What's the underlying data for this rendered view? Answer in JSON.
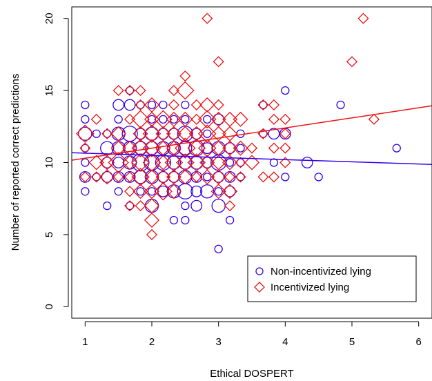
{
  "chart_data": {
    "type": "scatter",
    "title": "",
    "xlabel": "Ethical DOSPERT",
    "ylabel": "Number of reported correct predictions",
    "xlim": [
      0.8,
      6.2
    ],
    "ylim": [
      -0.8,
      20.8
    ],
    "xticks": [
      "1",
      "2",
      "3",
      "4",
      "5",
      "6"
    ],
    "yticks": [
      "0",
      "5",
      "10",
      "15",
      "20"
    ],
    "grid": false,
    "legend_position": "bottom-right",
    "colors": {
      "non_incentivized": "#3300ee",
      "incentivized": "#ee1111"
    },
    "series": [
      {
        "name": "Non-incentivized lying",
        "marker": "circle",
        "color": "#3300ee",
        "points": [
          {
            "x": 1.0,
            "y": 14,
            "n": 1
          },
          {
            "x": 1.0,
            "y": 13,
            "n": 1
          },
          {
            "x": 1.0,
            "y": 12,
            "n": 3
          },
          {
            "x": 1.0,
            "y": 11,
            "n": 1
          },
          {
            "x": 1.0,
            "y": 10,
            "n": 1
          },
          {
            "x": 1.0,
            "y": 9,
            "n": 2
          },
          {
            "x": 1.0,
            "y": 8,
            "n": 1
          },
          {
            "x": 1.17,
            "y": 12,
            "n": 1
          },
          {
            "x": 1.17,
            "y": 9,
            "n": 1
          },
          {
            "x": 1.33,
            "y": 12,
            "n": 1
          },
          {
            "x": 1.33,
            "y": 11,
            "n": 3
          },
          {
            "x": 1.33,
            "y": 10,
            "n": 2
          },
          {
            "x": 1.33,
            "y": 9,
            "n": 2
          },
          {
            "x": 1.33,
            "y": 7,
            "n": 1
          },
          {
            "x": 1.5,
            "y": 14,
            "n": 2
          },
          {
            "x": 1.5,
            "y": 13,
            "n": 1
          },
          {
            "x": 1.5,
            "y": 12,
            "n": 3
          },
          {
            "x": 1.5,
            "y": 11,
            "n": 3
          },
          {
            "x": 1.5,
            "y": 10,
            "n": 2
          },
          {
            "x": 1.5,
            "y": 9,
            "n": 2
          },
          {
            "x": 1.5,
            "y": 8,
            "n": 1
          },
          {
            "x": 1.67,
            "y": 15,
            "n": 1
          },
          {
            "x": 1.67,
            "y": 14,
            "n": 2
          },
          {
            "x": 1.67,
            "y": 12,
            "n": 4
          },
          {
            "x": 1.67,
            "y": 11,
            "n": 3
          },
          {
            "x": 1.67,
            "y": 10,
            "n": 3
          },
          {
            "x": 1.67,
            "y": 9,
            "n": 2
          },
          {
            "x": 1.67,
            "y": 7,
            "n": 1
          },
          {
            "x": 1.83,
            "y": 14,
            "n": 1
          },
          {
            "x": 1.83,
            "y": 12,
            "n": 2
          },
          {
            "x": 1.83,
            "y": 11,
            "n": 3
          },
          {
            "x": 1.83,
            "y": 10,
            "n": 5
          },
          {
            "x": 1.83,
            "y": 9,
            "n": 3
          },
          {
            "x": 1.83,
            "y": 8,
            "n": 1
          },
          {
            "x": 2.0,
            "y": 14,
            "n": 1
          },
          {
            "x": 2.0,
            "y": 13,
            "n": 1
          },
          {
            "x": 2.0,
            "y": 12,
            "n": 3
          },
          {
            "x": 2.0,
            "y": 11,
            "n": 3
          },
          {
            "x": 2.0,
            "y": 10,
            "n": 4
          },
          {
            "x": 2.0,
            "y": 9,
            "n": 3
          },
          {
            "x": 2.0,
            "y": 8,
            "n": 1
          },
          {
            "x": 2.0,
            "y": 7,
            "n": 3
          },
          {
            "x": 2.17,
            "y": 14,
            "n": 1
          },
          {
            "x": 2.17,
            "y": 13,
            "n": 1
          },
          {
            "x": 2.17,
            "y": 12,
            "n": 2
          },
          {
            "x": 2.17,
            "y": 11,
            "n": 3
          },
          {
            "x": 2.17,
            "y": 10,
            "n": 4
          },
          {
            "x": 2.17,
            "y": 9,
            "n": 2
          },
          {
            "x": 2.17,
            "y": 8,
            "n": 2
          },
          {
            "x": 2.33,
            "y": 13,
            "n": 1
          },
          {
            "x": 2.33,
            "y": 12,
            "n": 2
          },
          {
            "x": 2.33,
            "y": 11,
            "n": 3
          },
          {
            "x": 2.33,
            "y": 10,
            "n": 3
          },
          {
            "x": 2.33,
            "y": 9,
            "n": 2
          },
          {
            "x": 2.33,
            "y": 8,
            "n": 3
          },
          {
            "x": 2.33,
            "y": 6,
            "n": 1
          },
          {
            "x": 2.5,
            "y": 14,
            "n": 1
          },
          {
            "x": 2.5,
            "y": 13,
            "n": 1
          },
          {
            "x": 2.5,
            "y": 12,
            "n": 4
          },
          {
            "x": 2.5,
            "y": 11,
            "n": 3
          },
          {
            "x": 2.5,
            "y": 10,
            "n": 3
          },
          {
            "x": 2.5,
            "y": 9,
            "n": 3
          },
          {
            "x": 2.5,
            "y": 8,
            "n": 4
          },
          {
            "x": 2.5,
            "y": 7,
            "n": 1
          },
          {
            "x": 2.5,
            "y": 6,
            "n": 1
          },
          {
            "x": 2.67,
            "y": 12,
            "n": 2
          },
          {
            "x": 2.67,
            "y": 11,
            "n": 4
          },
          {
            "x": 2.67,
            "y": 10,
            "n": 3
          },
          {
            "x": 2.67,
            "y": 9,
            "n": 2
          },
          {
            "x": 2.67,
            "y": 8,
            "n": 2
          },
          {
            "x": 2.67,
            "y": 7,
            "n": 2
          },
          {
            "x": 2.83,
            "y": 13,
            "n": 1
          },
          {
            "x": 2.83,
            "y": 12,
            "n": 1
          },
          {
            "x": 2.83,
            "y": 11,
            "n": 2
          },
          {
            "x": 2.83,
            "y": 10,
            "n": 2
          },
          {
            "x": 2.83,
            "y": 9,
            "n": 1
          },
          {
            "x": 2.83,
            "y": 8,
            "n": 3
          },
          {
            "x": 3.0,
            "y": 13,
            "n": 2
          },
          {
            "x": 3.0,
            "y": 11,
            "n": 3
          },
          {
            "x": 3.0,
            "y": 10,
            "n": 4
          },
          {
            "x": 3.0,
            "y": 9,
            "n": 2
          },
          {
            "x": 3.0,
            "y": 8,
            "n": 1
          },
          {
            "x": 3.0,
            "y": 7,
            "n": 3
          },
          {
            "x": 3.0,
            "y": 4,
            "n": 1
          },
          {
            "x": 3.17,
            "y": 11,
            "n": 2
          },
          {
            "x": 3.17,
            "y": 10,
            "n": 1
          },
          {
            "x": 3.17,
            "y": 9,
            "n": 2
          },
          {
            "x": 3.17,
            "y": 8,
            "n": 2
          },
          {
            "x": 3.17,
            "y": 6,
            "n": 1
          },
          {
            "x": 3.33,
            "y": 12,
            "n": 1
          },
          {
            "x": 3.33,
            "y": 11,
            "n": 1
          },
          {
            "x": 3.33,
            "y": 10,
            "n": 1
          },
          {
            "x": 3.33,
            "y": 9,
            "n": 1
          },
          {
            "x": 3.67,
            "y": 14,
            "n": 1
          },
          {
            "x": 3.67,
            "y": 12,
            "n": 1
          },
          {
            "x": 3.83,
            "y": 12,
            "n": 2
          },
          {
            "x": 3.83,
            "y": 10,
            "n": 1
          },
          {
            "x": 4.0,
            "y": 15,
            "n": 1
          },
          {
            "x": 4.0,
            "y": 12,
            "n": 2
          },
          {
            "x": 4.0,
            "y": 9,
            "n": 1
          },
          {
            "x": 4.33,
            "y": 10,
            "n": 2
          },
          {
            "x": 4.5,
            "y": 9,
            "n": 1
          },
          {
            "x": 4.83,
            "y": 14,
            "n": 1
          },
          {
            "x": 5.67,
            "y": 11,
            "n": 1
          }
        ],
        "fit": {
          "intercept": 10.8,
          "slope": -0.15
        }
      },
      {
        "name": "Incentivized lying",
        "marker": "diamond",
        "color": "#ee1111",
        "points": [
          {
            "x": 1.0,
            "y": 12,
            "n": 3
          },
          {
            "x": 1.0,
            "y": 11,
            "n": 1
          },
          {
            "x": 1.0,
            "y": 9,
            "n": 1
          },
          {
            "x": 1.17,
            "y": 13,
            "n": 1
          },
          {
            "x": 1.17,
            "y": 10,
            "n": 2
          },
          {
            "x": 1.17,
            "y": 9,
            "n": 1
          },
          {
            "x": 1.33,
            "y": 12,
            "n": 1
          },
          {
            "x": 1.33,
            "y": 10,
            "n": 2
          },
          {
            "x": 1.33,
            "y": 9,
            "n": 2
          },
          {
            "x": 1.5,
            "y": 15,
            "n": 1
          },
          {
            "x": 1.5,
            "y": 12,
            "n": 2
          },
          {
            "x": 1.5,
            "y": 11,
            "n": 2
          },
          {
            "x": 1.5,
            "y": 10,
            "n": 4
          },
          {
            "x": 1.5,
            "y": 9,
            "n": 1
          },
          {
            "x": 1.67,
            "y": 15,
            "n": 1
          },
          {
            "x": 1.67,
            "y": 13,
            "n": 1
          },
          {
            "x": 1.67,
            "y": 11,
            "n": 2
          },
          {
            "x": 1.67,
            "y": 10,
            "n": 2
          },
          {
            "x": 1.67,
            "y": 9,
            "n": 1
          },
          {
            "x": 1.67,
            "y": 8,
            "n": 1
          },
          {
            "x": 1.67,
            "y": 7,
            "n": 1
          },
          {
            "x": 1.83,
            "y": 15,
            "n": 1
          },
          {
            "x": 1.83,
            "y": 14,
            "n": 1
          },
          {
            "x": 1.83,
            "y": 13,
            "n": 3
          },
          {
            "x": 1.83,
            "y": 12,
            "n": 2
          },
          {
            "x": 1.83,
            "y": 11,
            "n": 3
          },
          {
            "x": 1.83,
            "y": 10,
            "n": 3
          },
          {
            "x": 1.83,
            "y": 9,
            "n": 3
          },
          {
            "x": 1.83,
            "y": 8,
            "n": 2
          },
          {
            "x": 1.83,
            "y": 7,
            "n": 1
          },
          {
            "x": 2.0,
            "y": 14,
            "n": 2
          },
          {
            "x": 2.0,
            "y": 13,
            "n": 2
          },
          {
            "x": 2.0,
            "y": 12,
            "n": 3
          },
          {
            "x": 2.0,
            "y": 11,
            "n": 3
          },
          {
            "x": 2.0,
            "y": 10,
            "n": 3
          },
          {
            "x": 2.0,
            "y": 9,
            "n": 2
          },
          {
            "x": 2.0,
            "y": 8,
            "n": 2
          },
          {
            "x": 2.0,
            "y": 7,
            "n": 2
          },
          {
            "x": 2.0,
            "y": 6,
            "n": 2
          },
          {
            "x": 2.0,
            "y": 5,
            "n": 1
          },
          {
            "x": 2.17,
            "y": 13,
            "n": 3
          },
          {
            "x": 2.17,
            "y": 12,
            "n": 2
          },
          {
            "x": 2.17,
            "y": 11,
            "n": 2
          },
          {
            "x": 2.17,
            "y": 10,
            "n": 2
          },
          {
            "x": 2.17,
            "y": 9,
            "n": 2
          },
          {
            "x": 2.17,
            "y": 8,
            "n": 3
          },
          {
            "x": 2.33,
            "y": 15,
            "n": 1
          },
          {
            "x": 2.33,
            "y": 14,
            "n": 1
          },
          {
            "x": 2.33,
            "y": 13,
            "n": 2
          },
          {
            "x": 2.33,
            "y": 12,
            "n": 2
          },
          {
            "x": 2.33,
            "y": 11,
            "n": 2
          },
          {
            "x": 2.33,
            "y": 10,
            "n": 3
          },
          {
            "x": 2.33,
            "y": 9,
            "n": 2
          },
          {
            "x": 2.33,
            "y": 8,
            "n": 2
          },
          {
            "x": 2.5,
            "y": 16,
            "n": 1
          },
          {
            "x": 2.5,
            "y": 15,
            "n": 3
          },
          {
            "x": 2.5,
            "y": 13,
            "n": 2
          },
          {
            "x": 2.5,
            "y": 12,
            "n": 2
          },
          {
            "x": 2.5,
            "y": 11,
            "n": 4
          },
          {
            "x": 2.5,
            "y": 10,
            "n": 3
          },
          {
            "x": 2.5,
            "y": 9,
            "n": 2
          },
          {
            "x": 2.67,
            "y": 14,
            "n": 1
          },
          {
            "x": 2.67,
            "y": 13,
            "n": 1
          },
          {
            "x": 2.67,
            "y": 12,
            "n": 2
          },
          {
            "x": 2.67,
            "y": 11,
            "n": 3
          },
          {
            "x": 2.67,
            "y": 10,
            "n": 3
          },
          {
            "x": 2.67,
            "y": 9,
            "n": 1
          },
          {
            "x": 2.83,
            "y": 20,
            "n": 1
          },
          {
            "x": 2.83,
            "y": 14,
            "n": 2
          },
          {
            "x": 2.83,
            "y": 13,
            "n": 3
          },
          {
            "x": 2.83,
            "y": 12,
            "n": 3
          },
          {
            "x": 2.83,
            "y": 11,
            "n": 3
          },
          {
            "x": 2.83,
            "y": 10,
            "n": 2
          },
          {
            "x": 2.83,
            "y": 9,
            "n": 2
          },
          {
            "x": 3.0,
            "y": 17,
            "n": 1
          },
          {
            "x": 3.0,
            "y": 14,
            "n": 1
          },
          {
            "x": 3.0,
            "y": 13,
            "n": 2
          },
          {
            "x": 3.0,
            "y": 12,
            "n": 2
          },
          {
            "x": 3.0,
            "y": 11,
            "n": 2
          },
          {
            "x": 3.0,
            "y": 10,
            "n": 2
          },
          {
            "x": 3.0,
            "y": 9,
            "n": 2
          },
          {
            "x": 3.0,
            "y": 8,
            "n": 2
          },
          {
            "x": 3.17,
            "y": 13,
            "n": 2
          },
          {
            "x": 3.17,
            "y": 12,
            "n": 2
          },
          {
            "x": 3.17,
            "y": 11,
            "n": 2
          },
          {
            "x": 3.17,
            "y": 10,
            "n": 2
          },
          {
            "x": 3.17,
            "y": 9,
            "n": 1
          },
          {
            "x": 3.17,
            "y": 8,
            "n": 2
          },
          {
            "x": 3.17,
            "y": 7,
            "n": 1
          },
          {
            "x": 3.33,
            "y": 13,
            "n": 2
          },
          {
            "x": 3.33,
            "y": 11,
            "n": 2
          },
          {
            "x": 3.33,
            "y": 10,
            "n": 1
          },
          {
            "x": 3.33,
            "y": 9,
            "n": 1
          },
          {
            "x": 3.5,
            "y": 11,
            "n": 1
          },
          {
            "x": 3.5,
            "y": 10,
            "n": 2
          },
          {
            "x": 3.67,
            "y": 14,
            "n": 1
          },
          {
            "x": 3.67,
            "y": 12,
            "n": 1
          },
          {
            "x": 3.67,
            "y": 9,
            "n": 1
          },
          {
            "x": 3.83,
            "y": 14,
            "n": 1
          },
          {
            "x": 3.83,
            "y": 13,
            "n": 1
          },
          {
            "x": 3.83,
            "y": 11,
            "n": 1
          },
          {
            "x": 3.83,
            "y": 9,
            "n": 1
          },
          {
            "x": 4.0,
            "y": 13,
            "n": 1
          },
          {
            "x": 4.0,
            "y": 12,
            "n": 1
          },
          {
            "x": 4.0,
            "y": 11,
            "n": 1
          },
          {
            "x": 4.0,
            "y": 10,
            "n": 1
          },
          {
            "x": 5.0,
            "y": 17,
            "n": 1
          },
          {
            "x": 5.17,
            "y": 20,
            "n": 1
          },
          {
            "x": 5.33,
            "y": 13,
            "n": 1
          }
        ],
        "fit": {
          "intercept": 9.6,
          "slope": 0.7
        }
      }
    ]
  }
}
